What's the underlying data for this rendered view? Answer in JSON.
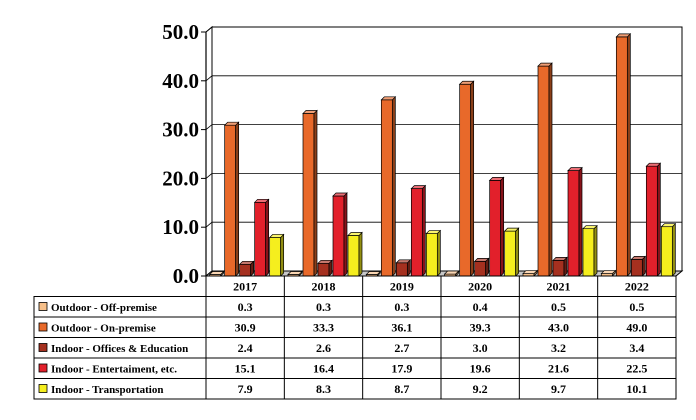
{
  "chart_data": {
    "type": "bar",
    "categories": [
      "2017",
      "2018",
      "2019",
      "2020",
      "2021",
      "2022"
    ],
    "series": [
      {
        "name": "Outdoor - Off-premise",
        "values": [
          0.3,
          0.3,
          0.3,
          0.4,
          0.5,
          0.5
        ],
        "color": "#F7C08A"
      },
      {
        "name": "Outdoor - On-premise",
        "values": [
          30.9,
          33.3,
          36.1,
          39.3,
          43.0,
          49.0
        ],
        "color": "#E8692A"
      },
      {
        "name": "Indoor - Offices & Education",
        "values": [
          2.4,
          2.6,
          2.7,
          3.0,
          3.2,
          3.4
        ],
        "color": "#A5301F"
      },
      {
        "name": "Indoor - Entertaiment, etc.",
        "values": [
          15.1,
          16.4,
          17.9,
          19.6,
          21.6,
          22.5
        ],
        "color": "#E2202B"
      },
      {
        "name": "Indoor - Transportation",
        "values": [
          7.9,
          8.3,
          8.7,
          9.2,
          9.7,
          10.1
        ],
        "color": "#F5EE1E"
      }
    ],
    "value_labels": [
      [
        "0.3",
        "0.3",
        "0.3",
        "0.4",
        "0.5",
        "0.5"
      ],
      [
        "30.9",
        "33.3",
        "36.1",
        "39.3",
        "43.0",
        "49.0"
      ],
      [
        "2.4",
        "2.6",
        "2.7",
        "3.0",
        "3.2",
        "3.4"
      ],
      [
        "15.1",
        "16.4",
        "17.9",
        "19.6",
        "21.6",
        "22.5"
      ],
      [
        "7.9",
        "8.3",
        "8.7",
        "9.2",
        "9.7",
        "10.1"
      ]
    ],
    "y_ticks": [
      "0.0",
      "10.0",
      "20.0",
      "30.0",
      "40.0",
      "50.0"
    ],
    "ylim": [
      0,
      50
    ],
    "grid": true,
    "legend": "data table below chart",
    "style": "3d"
  }
}
